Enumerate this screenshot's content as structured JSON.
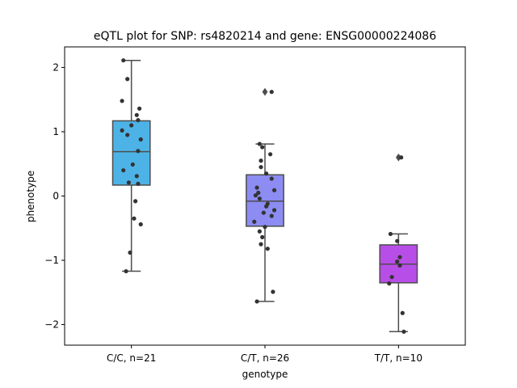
{
  "chart_data": {
    "type": "box",
    "title": "eQTL plot for SNP: rs4820214 and gene: ENSG00000224086",
    "xlabel": "genotype",
    "ylabel": "phenotype",
    "ylim": [
      -2.32,
      2.32
    ],
    "yticks": [
      -2,
      -1,
      0,
      1,
      2
    ],
    "grid": false,
    "categories": [
      "C/C, n=21",
      "C/T, n=26",
      "T/T, n=10"
    ],
    "boxes": [
      {
        "q1": 0.17,
        "median": 0.69,
        "q3": 1.17,
        "whisker_low": -1.17,
        "whisker_high": 2.11,
        "outliers": [],
        "color": "#4db3e6"
      },
      {
        "q1": -0.47,
        "median": -0.08,
        "q3": 0.33,
        "whisker_low": -1.64,
        "whisker_high": 0.81,
        "outliers": [
          1.62
        ],
        "color": "#8c8cf2"
      },
      {
        "q1": -1.35,
        "median": -1.06,
        "q3": -0.76,
        "whisker_low": -2.11,
        "whisker_high": -0.59,
        "outliers": [
          0.6
        ],
        "color": "#b84ee8"
      }
    ],
    "points": [
      [
        {
          "dx": -0.06,
          "y": 2.11
        },
        {
          "dx": -0.03,
          "y": 1.82
        },
        {
          "dx": -0.07,
          "y": 1.48
        },
        {
          "dx": 0.06,
          "y": 1.36
        },
        {
          "dx": 0.04,
          "y": 1.26
        },
        {
          "dx": 0.05,
          "y": 1.18
        },
        {
          "dx": 0.0,
          "y": 1.1
        },
        {
          "dx": -0.07,
          "y": 1.02
        },
        {
          "dx": -0.03,
          "y": 0.95
        },
        {
          "dx": 0.07,
          "y": 0.88
        },
        {
          "dx": 0.05,
          "y": 0.7
        },
        {
          "dx": 0.01,
          "y": 0.49
        },
        {
          "dx": -0.06,
          "y": 0.4
        },
        {
          "dx": 0.04,
          "y": 0.31
        },
        {
          "dx": -0.02,
          "y": 0.21
        },
        {
          "dx": 0.05,
          "y": 0.19
        },
        {
          "dx": 0.03,
          "y": -0.08
        },
        {
          "dx": 0.02,
          "y": -0.35
        },
        {
          "dx": 0.07,
          "y": -0.44
        },
        {
          "dx": -0.01,
          "y": -0.88
        },
        {
          "dx": -0.04,
          "y": -1.17
        }
      ],
      [
        {
          "dx": 0.05,
          "y": 1.62
        },
        {
          "dx": -0.04,
          "y": 0.81
        },
        {
          "dx": -0.02,
          "y": 0.76
        },
        {
          "dx": 0.04,
          "y": 0.65
        },
        {
          "dx": -0.03,
          "y": 0.55
        },
        {
          "dx": -0.03,
          "y": 0.45
        },
        {
          "dx": 0.01,
          "y": 0.35
        },
        {
          "dx": 0.05,
          "y": 0.27
        },
        {
          "dx": -0.06,
          "y": 0.13
        },
        {
          "dx": 0.07,
          "y": 0.09
        },
        {
          "dx": -0.05,
          "y": 0.05
        },
        {
          "dx": -0.07,
          "y": 0.01
        },
        {
          "dx": -0.04,
          "y": -0.04
        },
        {
          "dx": 0.02,
          "y": -0.12
        },
        {
          "dx": 0.07,
          "y": -0.22
        },
        {
          "dx": -0.01,
          "y": -0.26
        },
        {
          "dx": 0.05,
          "y": -0.31
        },
        {
          "dx": -0.08,
          "y": -0.4
        },
        {
          "dx": 0.0,
          "y": -0.48
        },
        {
          "dx": -0.04,
          "y": -0.55
        },
        {
          "dx": -0.02,
          "y": -0.64
        },
        {
          "dx": -0.03,
          "y": -0.75
        },
        {
          "dx": 0.02,
          "y": -0.82
        },
        {
          "dx": 0.06,
          "y": -1.49
        },
        {
          "dx": -0.06,
          "y": -1.64
        },
        {
          "dx": 0.01,
          "y": -0.16
        }
      ],
      [
        {
          "dx": 0.02,
          "y": 0.6
        },
        {
          "dx": -0.06,
          "y": -0.59
        },
        {
          "dx": -0.01,
          "y": -0.7
        },
        {
          "dx": 0.01,
          "y": -0.95
        },
        {
          "dx": -0.01,
          "y": -1.02
        },
        {
          "dx": 0.01,
          "y": -1.08
        },
        {
          "dx": -0.05,
          "y": -1.26
        },
        {
          "dx": -0.07,
          "y": -1.36
        },
        {
          "dx": 0.03,
          "y": -1.82
        },
        {
          "dx": 0.04,
          "y": -2.11
        }
      ]
    ]
  }
}
